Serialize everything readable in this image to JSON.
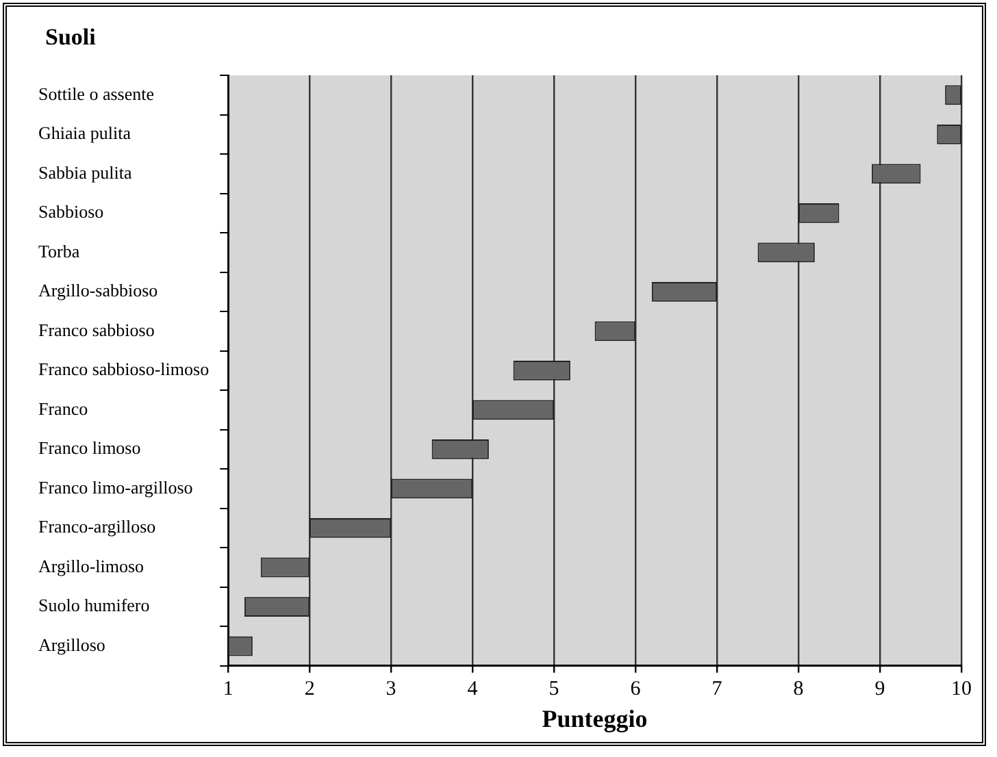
{
  "chart_data": {
    "type": "bar",
    "orientation": "horizontal",
    "ylabel": "Suoli",
    "xlabel": "Punteggio",
    "categories": [
      "Sottile o assente",
      "Ghiaia pulita",
      "Sabbia pulita",
      "Sabbioso",
      "Torba",
      "Argillo-sabbioso",
      "Franco sabbioso",
      "Franco sabbioso-limoso",
      "Franco",
      "Franco limoso",
      "Franco limo-argilloso",
      "Franco-argilloso",
      "Argillo-limoso",
      "Suolo humifero",
      "Argilloso"
    ],
    "base": [
      9.8,
      9.7,
      8.9,
      8,
      7.5,
      6.2,
      5.5,
      4.5,
      4,
      3.5,
      3,
      2,
      1.4,
      1.2,
      1
    ],
    "values": [
      0.2,
      0.3,
      0.6,
      0.5,
      0.7,
      0.8,
      0.5,
      0.7,
      1,
      0.7,
      1,
      1,
      0.6,
      0.8,
      0.3
    ],
    "color": "#666666",
    "xlim": [
      1,
      10
    ],
    "xticks": [
      1,
      2,
      3,
      4,
      5,
      6,
      7,
      8,
      9,
      10
    ],
    "grid": "x",
    "legend": false
  }
}
